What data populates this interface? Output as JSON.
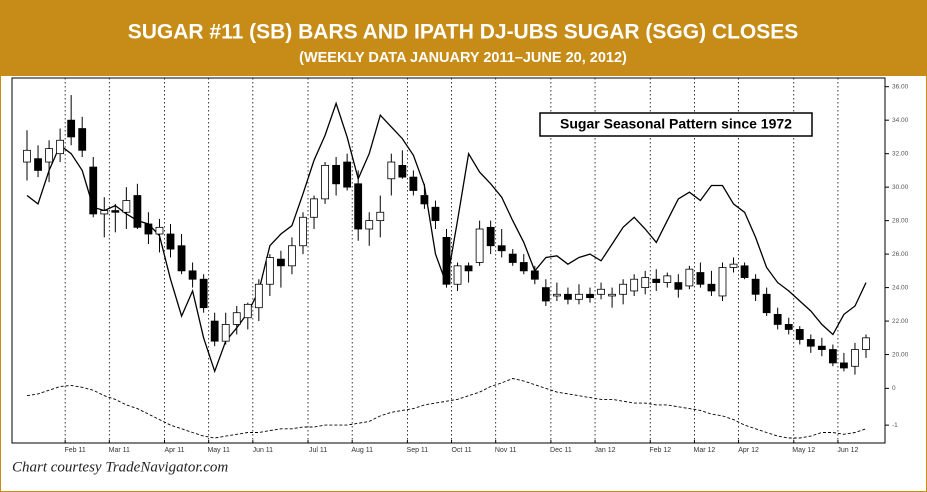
{
  "header": {
    "title": "SUGAR #11 (SB) BARS AND IPATH DJ-UBS SUGAR (SGG) CLOSES",
    "subtitle": "(WEEKLY DATA JANUARY 2011–JUNE 20, 2012)",
    "caption": "Chart courtesy TradeNavigator.com"
  },
  "chart_data": [
    {
      "type": "candlestick",
      "categories": [
        null,
        null,
        null,
        null,
        "Feb 11",
        null,
        null,
        null,
        "Mar 11",
        null,
        null,
        null,
        null,
        "Apr 11",
        null,
        null,
        null,
        "May 11",
        null,
        null,
        null,
        "Jun 11",
        null,
        null,
        null,
        null,
        "Jul 11",
        null,
        null,
        null,
        "Aug 11",
        null,
        null,
        null,
        null,
        "Sep 11",
        null,
        null,
        null,
        "Oct 11",
        null,
        null,
        null,
        "Nov 11",
        null,
        null,
        null,
        null,
        "Dec 11",
        null,
        null,
        null,
        "Jan 12",
        null,
        null,
        null,
        null,
        "Feb 12",
        null,
        null,
        null,
        "Mar 12",
        null,
        null,
        null,
        "Apr 12",
        null,
        null,
        null,
        null,
        "May 12",
        null,
        null,
        null,
        "Jun 12",
        null,
        null
      ],
      "open": [
        31.5,
        31.7,
        31.5,
        32.0,
        34.0,
        33.5,
        31.2,
        28.4,
        28.6,
        28.5,
        29.5,
        27.8,
        27.2,
        27.2,
        26.5,
        25.0,
        24.5,
        22.0,
        20.8,
        21.8,
        22.2,
        22.8,
        24.2,
        25.7,
        25.3,
        26.5,
        28.2,
        29.3,
        31.3,
        31.5,
        30.2,
        27.5,
        28.0,
        30.5,
        31.3,
        30.6,
        29.5,
        28.8,
        27.0,
        24.2,
        25.3,
        25.5,
        27.6,
        26.5,
        26.0,
        25.5,
        25.0,
        24.0,
        23.5,
        23.6,
        23.3,
        23.6,
        23.6,
        23.5,
        23.6,
        23.8,
        24.0,
        24.5,
        24.3,
        24.3,
        24.1,
        24.9,
        24.2,
        23.5,
        25.2,
        25.3,
        24.5,
        23.6,
        22.4,
        21.8,
        21.5,
        20.9,
        20.5,
        20.3,
        19.5,
        19.3,
        20.3
      ],
      "high": [
        33.4,
        32.5,
        32.8,
        33.5,
        35.5,
        34.2,
        31.8,
        29.4,
        29.0,
        30.0,
        30.2,
        28.5,
        28.1,
        27.8,
        27.2,
        25.5,
        24.8,
        22.5,
        22.5,
        22.9,
        23.1,
        24.5,
        26.0,
        26.2,
        27.0,
        28.5,
        29.5,
        31.5,
        31.8,
        32.0,
        31.0,
        28.5,
        29.5,
        32.0,
        32.2,
        31.0,
        30.2,
        29.2,
        27.5,
        25.5,
        25.5,
        28.0,
        28.0,
        27.5,
        26.3,
        26.0,
        25.3,
        24.5,
        24.3,
        24.0,
        24.2,
        24.0,
        24.3,
        24.0,
        24.5,
        24.8,
        25.0,
        25.1,
        24.9,
        24.8,
        25.3,
        25.5,
        25.0,
        25.5,
        25.8,
        25.5,
        24.8,
        24.0,
        22.8,
        22.2,
        21.7,
        21.2,
        21.0,
        20.6,
        20.1,
        20.7,
        21.2
      ],
      "low": [
        30.4,
        30.6,
        30.3,
        31.5,
        32.5,
        31.8,
        28.2,
        27.0,
        27.3,
        27.5,
        27.5,
        26.6,
        26.1,
        25.8,
        24.8,
        24.0,
        22.5,
        20.5,
        20.6,
        21.2,
        21.5,
        22.0,
        23.5,
        24.0,
        24.8,
        26.0,
        27.5,
        29.0,
        29.5,
        29.8,
        26.8,
        26.5,
        27.0,
        29.5,
        30.5,
        29.5,
        28.7,
        27.5,
        24.0,
        23.8,
        24.3,
        25.3,
        26.0,
        25.8,
        25.3,
        24.8,
        24.2,
        22.9,
        23.2,
        23.0,
        23.0,
        23.1,
        23.3,
        22.8,
        23.0,
        23.5,
        23.6,
        23.8,
        24.0,
        23.4,
        23.9,
        24.0,
        23.5,
        23.2,
        24.9,
        24.5,
        23.2,
        22.3,
        21.5,
        21.2,
        20.6,
        20.1,
        19.9,
        19.3,
        19.0,
        18.8,
        19.8
      ],
      "close": [
        32.2,
        31.0,
        32.3,
        32.8,
        33.0,
        32.2,
        28.4,
        28.6,
        28.5,
        29.2,
        27.6,
        27.2,
        27.6,
        26.3,
        25.0,
        24.5,
        22.8,
        20.8,
        21.8,
        22.5,
        23.0,
        24.2,
        25.8,
        25.3,
        26.5,
        28.2,
        29.3,
        31.3,
        30.2,
        30.0,
        27.5,
        28.0,
        28.5,
        31.5,
        30.6,
        29.8,
        29.0,
        28.0,
        24.2,
        25.3,
        25.0,
        27.5,
        26.5,
        26.2,
        25.5,
        25.0,
        24.5,
        23.2,
        23.6,
        23.3,
        23.6,
        23.4,
        23.9,
        23.6,
        24.2,
        24.5,
        24.6,
        24.3,
        24.7,
        23.9,
        25.1,
        24.2,
        23.8,
        25.2,
        25.4,
        24.6,
        23.6,
        22.5,
        21.8,
        21.5,
        20.9,
        20.5,
        20.3,
        19.5,
        19.2,
        20.3,
        21.0
      ],
      "line": {
        "color": "#000000",
        "values": [
          29.5,
          29.0,
          31.0,
          32.5,
          32.0,
          31.0,
          28.8,
          28.6,
          28.9,
          28.4,
          28.0,
          27.8,
          27.1,
          24.5,
          22.3,
          23.8,
          21.0,
          19.0,
          20.8,
          21.6,
          22.5,
          23.8,
          26.5,
          27.2,
          27.7,
          29.6,
          31.6,
          33.1,
          35.0,
          33.0,
          30.5,
          32.0,
          34.3,
          33.6,
          32.9,
          31.9,
          30.1,
          26.0,
          24.2,
          28.0,
          32.0,
          30.9,
          30.2,
          29.4,
          28.0,
          26.7,
          25.0,
          25.8,
          25.9,
          25.4,
          25.8,
          26.0,
          25.6,
          26.6,
          27.6,
          28.2,
          27.5,
          26.7,
          28.0,
          29.3,
          29.7,
          29.2,
          30.1,
          30.1,
          29.0,
          28.5,
          27.0,
          25.2,
          24.3,
          23.8,
          23.2,
          22.6,
          21.8,
          21.2,
          22.4,
          22.9,
          24.3
        ]
      },
      "ylim": [
        18.6,
        36.4
      ],
      "yticks": [
        {
          "value": 36,
          "label": "36.00"
        },
        {
          "value": 34,
          "label": "34.00"
        },
        {
          "value": 32,
          "label": "32.00"
        },
        {
          "value": 30,
          "label": "30.00"
        },
        {
          "value": 28,
          "label": "28.00"
        },
        {
          "value": 26,
          "label": "26.00"
        },
        {
          "value": 24,
          "label": "24.00"
        },
        {
          "value": 22,
          "label": "22.00"
        },
        {
          "value": 20,
          "label": "20.00"
        }
      ],
      "grid": true
    },
    {
      "type": "line",
      "annotation": "Sugar Seasonal Pattern since 1972",
      "color": "#000000",
      "values": [
        -0.2,
        -0.15,
        -0.05,
        0.05,
        0.08,
        0.03,
        -0.05,
        -0.2,
        -0.3,
        -0.45,
        -0.55,
        -0.7,
        -0.85,
        -1.0,
        -1.1,
        -1.2,
        -1.3,
        -1.35,
        -1.3,
        -1.25,
        -1.2,
        -1.2,
        -1.15,
        -1.1,
        -1.1,
        -1.05,
        -1.05,
        -1.0,
        -1.0,
        -1.0,
        -0.95,
        -0.9,
        -0.75,
        -0.65,
        -0.6,
        -0.55,
        -0.45,
        -0.4,
        -0.35,
        -0.3,
        -0.2,
        -0.1,
        0.05,
        0.15,
        0.27,
        0.2,
        0.1,
        0.0,
        -0.1,
        -0.15,
        -0.2,
        -0.25,
        -0.3,
        -0.3,
        -0.35,
        -0.4,
        -0.4,
        -0.45,
        -0.45,
        -0.5,
        -0.55,
        -0.6,
        -0.7,
        -0.75,
        -0.85,
        -1.0,
        -1.1,
        -1.2,
        -1.3,
        -1.35,
        -1.35,
        -1.3,
        -1.2,
        -1.2,
        -1.25,
        -1.2,
        -1.1
      ],
      "ylim": [
        -1.5,
        0.5
      ],
      "yticks": [
        0,
        -1
      ]
    }
  ]
}
